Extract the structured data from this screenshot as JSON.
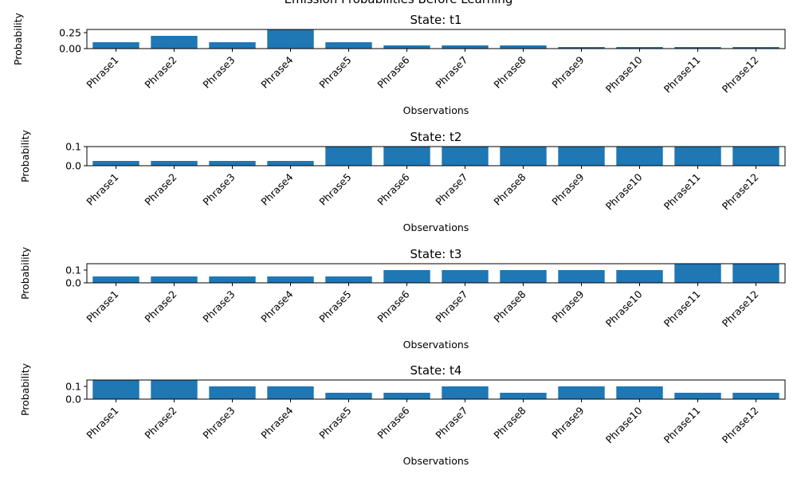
{
  "figure": {
    "suptitle": "Emission Probabilities Before Learning"
  },
  "chart_data": [
    {
      "type": "bar",
      "title": "State: t1",
      "xlabel": "Observations",
      "ylabel": "Probability",
      "categories": [
        "Phrase1",
        "Phrase2",
        "Phrase3",
        "Phrase4",
        "Phrase5",
        "Phrase6",
        "Phrase7",
        "Phrase8",
        "Phrase9",
        "Phrase10",
        "Phrase11",
        "Phrase12"
      ],
      "values": [
        0.1,
        0.2,
        0.1,
        0.3,
        0.1,
        0.05,
        0.05,
        0.05,
        0.025,
        0.025,
        0.025,
        0.025
      ],
      "ylim": [
        0,
        0.3
      ],
      "yticks": [
        0.0,
        0.25
      ],
      "ytick_labels": [
        "0.00",
        "0.25"
      ],
      "color": "#1f77b4"
    },
    {
      "type": "bar",
      "title": "State: t2",
      "xlabel": "Observations",
      "ylabel": "Probability",
      "categories": [
        "Phrase1",
        "Phrase2",
        "Phrase3",
        "Phrase4",
        "Phrase5",
        "Phrase6",
        "Phrase7",
        "Phrase8",
        "Phrase9",
        "Phrase10",
        "Phrase11",
        "Phrase12"
      ],
      "values": [
        0.025,
        0.025,
        0.025,
        0.025,
        0.1,
        0.1,
        0.1,
        0.1,
        0.1,
        0.1,
        0.1,
        0.1
      ],
      "ylim": [
        0,
        0.1
      ],
      "yticks": [
        0.0,
        0.1
      ],
      "ytick_labels": [
        "0.0",
        "0.1"
      ],
      "color": "#1f77b4"
    },
    {
      "type": "bar",
      "title": "State: t3",
      "xlabel": "Observations",
      "ylabel": "Probability",
      "categories": [
        "Phrase1",
        "Phrase2",
        "Phrase3",
        "Phrase4",
        "Phrase5",
        "Phrase6",
        "Phrase7",
        "Phrase8",
        "Phrase9",
        "Phrase10",
        "Phrase11",
        "Phrase12"
      ],
      "values": [
        0.05,
        0.05,
        0.05,
        0.05,
        0.05,
        0.1,
        0.1,
        0.1,
        0.1,
        0.1,
        0.15,
        0.15
      ],
      "ylim": [
        0,
        0.15
      ],
      "yticks": [
        0.0,
        0.1
      ],
      "ytick_labels": [
        "0.0",
        "0.1"
      ],
      "color": "#1f77b4"
    },
    {
      "type": "bar",
      "title": "State: t4",
      "xlabel": "Observations",
      "ylabel": "Probability",
      "categories": [
        "Phrase1",
        "Phrase2",
        "Phrase3",
        "Phrase4",
        "Phrase5",
        "Phrase6",
        "Phrase7",
        "Phrase8",
        "Phrase9",
        "Phrase10",
        "Phrase11",
        "Phrase12"
      ],
      "values": [
        0.15,
        0.15,
        0.1,
        0.1,
        0.05,
        0.05,
        0.1,
        0.05,
        0.1,
        0.1,
        0.05,
        0.05
      ],
      "ylim": [
        0,
        0.15
      ],
      "yticks": [
        0.0,
        0.1
      ],
      "ytick_labels": [
        "0.0",
        "0.1"
      ],
      "color": "#1f77b4"
    }
  ]
}
